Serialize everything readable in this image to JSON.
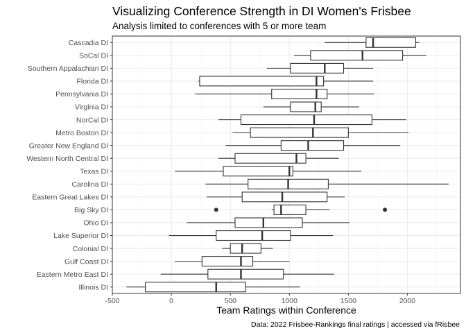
{
  "chart_data": {
    "type": "boxplot",
    "title": "Visualizing Conference Strength in DI Women's Frisbee",
    "subtitle": "Analysis limited to conferences with 5 or more team",
    "xlabel": "Team Ratings within Conference",
    "ylabel": "",
    "caption": "Data: 2022 Frisbee-Rankings final ratings | accessed via fRisbee",
    "xlim": [
      -500,
      2450
    ],
    "xticks": [
      -500,
      0,
      500,
      1000,
      1500,
      2000
    ],
    "xtick_labels": [
      "-500",
      "0",
      "500",
      "1000",
      "1500",
      "2000"
    ],
    "grid": true,
    "orientation": "horizontal",
    "categories": [
      "Cascadia DI",
      "SoCal DI",
      "Southern Appalachian DI",
      "Florida DI",
      "Pennsylvania DI",
      "Virginia DI",
      "NorCal DI",
      "Metro Boston DI",
      "Greater New England DI",
      "Western North Central DI",
      "Texas DI",
      "Carolina DI",
      "Eastern Great Lakes DI",
      "Big Sky DI",
      "Ohio DI",
      "Lake Superior DI",
      "Colonial DI",
      "Gulf Coast DI",
      "Eastern Metro East DI",
      "Illinois DI"
    ],
    "boxes": [
      {
        "min": 1300,
        "q1": 1650,
        "median": 1710,
        "q3": 2070,
        "max": 2100,
        "outliers": []
      },
      {
        "min": 1040,
        "q1": 1180,
        "median": 1620,
        "q3": 1960,
        "max": 2160,
        "outliers": []
      },
      {
        "min": 810,
        "q1": 1010,
        "median": 1300,
        "q3": 1460,
        "max": 1710,
        "outliers": []
      },
      {
        "min": 230,
        "q1": 240,
        "median": 1230,
        "q3": 1290,
        "max": 1710,
        "outliers": []
      },
      {
        "min": 200,
        "q1": 850,
        "median": 1230,
        "q3": 1320,
        "max": 1720,
        "outliers": []
      },
      {
        "min": 780,
        "q1": 1010,
        "median": 1220,
        "q3": 1270,
        "max": 1590,
        "outliers": []
      },
      {
        "min": 400,
        "q1": 590,
        "median": 1210,
        "q3": 1700,
        "max": 1990,
        "outliers": []
      },
      {
        "min": 520,
        "q1": 670,
        "median": 1200,
        "q3": 1500,
        "max": 2010,
        "outliers": []
      },
      {
        "min": 460,
        "q1": 930,
        "median": 1160,
        "q3": 1460,
        "max": 1940,
        "outliers": []
      },
      {
        "min": 400,
        "q1": 540,
        "median": 1060,
        "q3": 1140,
        "max": 1420,
        "outliers": []
      },
      {
        "min": 30,
        "q1": 440,
        "median": 1000,
        "q3": 1030,
        "max": 1610,
        "outliers": []
      },
      {
        "min": 290,
        "q1": 650,
        "median": 990,
        "q3": 1330,
        "max": 2350,
        "outliers": []
      },
      {
        "min": 300,
        "q1": 600,
        "median": 940,
        "q3": 1320,
        "max": 1470,
        "outliers": []
      },
      {
        "min": 850,
        "q1": 870,
        "median": 930,
        "q3": 1140,
        "max": 1340,
        "outliers": [
          380,
          1810
        ]
      },
      {
        "min": 130,
        "q1": 540,
        "median": 780,
        "q3": 1110,
        "max": 1510,
        "outliers": []
      },
      {
        "min": -20,
        "q1": 380,
        "median": 770,
        "q3": 1010,
        "max": 1370,
        "outliers": []
      },
      {
        "min": 430,
        "q1": 500,
        "median": 600,
        "q3": 760,
        "max": 860,
        "outliers": []
      },
      {
        "min": 30,
        "q1": 260,
        "median": 590,
        "q3": 690,
        "max": 1000,
        "outliers": []
      },
      {
        "min": -90,
        "q1": 310,
        "median": 590,
        "q3": 950,
        "max": 1380,
        "outliers": []
      },
      {
        "min": -380,
        "q1": -220,
        "median": 380,
        "q3": 630,
        "max": 1090,
        "outliers": []
      }
    ]
  }
}
